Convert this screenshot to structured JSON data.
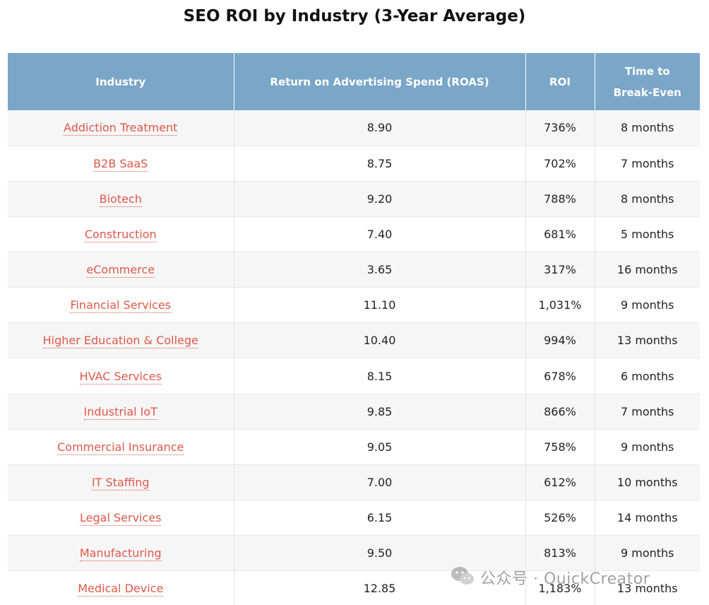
{
  "title": "SEO ROI by Industry (3-Year Average)",
  "columns": {
    "industry": "Industry",
    "roas": "Return on Advertising Spend (ROAS)",
    "roi": "ROI",
    "break_even_line1": "Time to",
    "break_even_line2": "Break-Even"
  },
  "rows": [
    {
      "industry": "Addiction Treatment",
      "roas": "8.90",
      "roi": "736%",
      "break_even": "8 months"
    },
    {
      "industry": "B2B SaaS",
      "roas": "8.75",
      "roi": "702%",
      "break_even": "7 months"
    },
    {
      "industry": "Biotech",
      "roas": "9.20",
      "roi": "788%",
      "break_even": "8 months"
    },
    {
      "industry": "Construction",
      "roas": "7.40",
      "roi": "681%",
      "break_even": "5 months"
    },
    {
      "industry": "eCommerce",
      "roas": "3.65",
      "roi": "317%",
      "break_even": "16 months"
    },
    {
      "industry": "Financial Services",
      "roas": "11.10",
      "roi": "1,031%",
      "break_even": "9 months"
    },
    {
      "industry": "Higher Education & College",
      "roas": "10.40",
      "roi": "994%",
      "break_even": "13 months"
    },
    {
      "industry": "HVAC Services",
      "roas": "8.15",
      "roi": "678%",
      "break_even": "6 months"
    },
    {
      "industry": "Industrial IoT",
      "roas": "9.85",
      "roi": "866%",
      "break_even": "7 months"
    },
    {
      "industry": "Commercial Insurance",
      "roas": "9.05",
      "roi": "758%",
      "break_even": "9 months"
    },
    {
      "industry": "IT Staffing",
      "roas": "7.00",
      "roi": "612%",
      "break_even": "10 months"
    },
    {
      "industry": "Legal Services",
      "roas": "6.15",
      "roi": "526%",
      "break_even": "14 months"
    },
    {
      "industry": "Manufacturing",
      "roas": "9.50",
      "roi": "813%",
      "break_even": "9 months"
    },
    {
      "industry": "Medical Device",
      "roas": "12.85",
      "roi": "1,183%",
      "break_even": "13 months"
    }
  ],
  "watermark": {
    "text": "公众号 · QuickCreator",
    "icon": "wechat-icon"
  },
  "colors": {
    "header_bg": "#7aa6c8",
    "link": "#e0574a",
    "row_alt": "#f6f6f6"
  }
}
